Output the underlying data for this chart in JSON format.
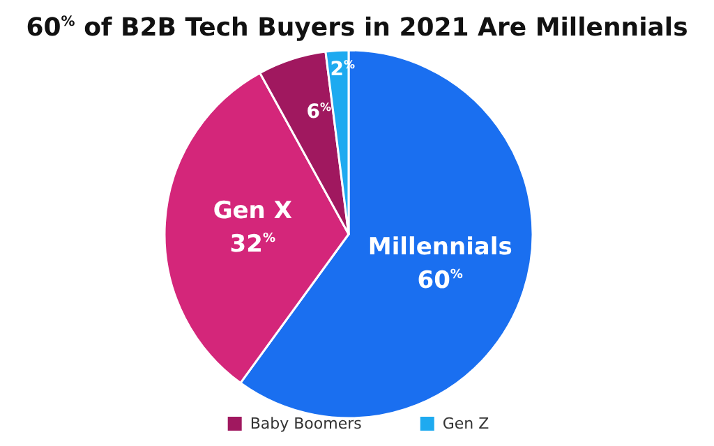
{
  "chart_data": {
    "type": "pie",
    "title": "60$^{%}$ of B2B Tech Buyers in 2021 Are Millennials",
    "categories": [
      "Millennials",
      "Gen X",
      "Baby Boomers",
      "Gen Z"
    ],
    "values": [
      60,
      32,
      6,
      2
    ],
    "value_labels": [
      "60$^{%}$",
      "32$^{%}$",
      "6$^{%}$",
      "2$^{%}$"
    ],
    "colors": [
      "#1a6ff0",
      "#d4267a",
      "#a0185f",
      "#1eaaf0"
    ],
    "legend": "bottom"
  }
}
